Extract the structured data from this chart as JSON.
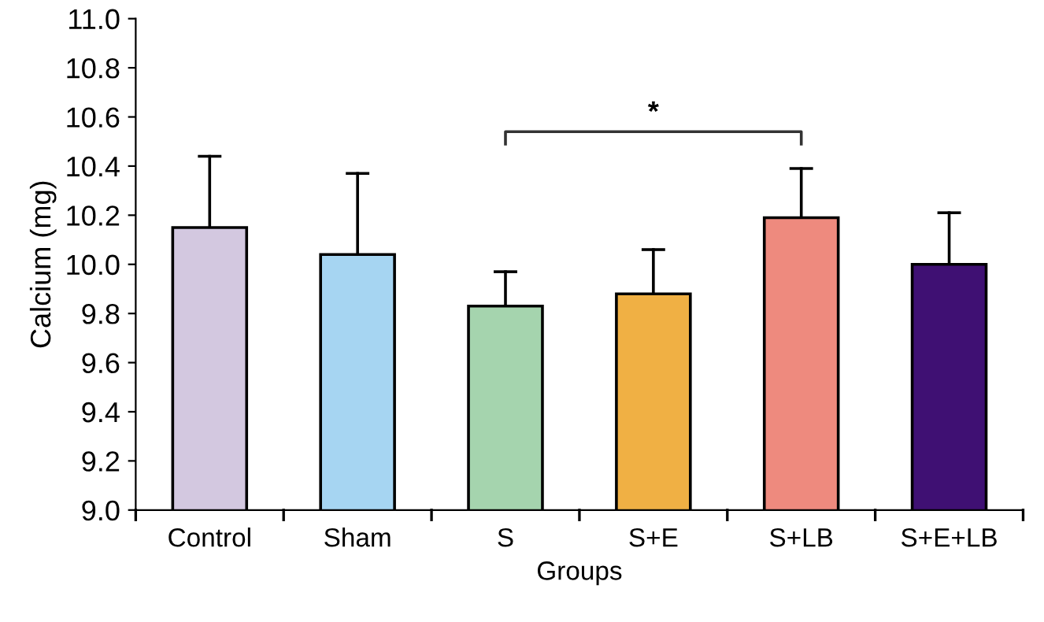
{
  "chart_data": {
    "type": "bar",
    "xlabel": "Groups",
    "ylabel": "Calcium (mg)",
    "categories": [
      "Control",
      "Sham",
      "S",
      "S+E",
      "S+LB",
      "S+E+LB"
    ],
    "values": [
      10.15,
      10.04,
      9.83,
      9.88,
      10.19,
      10.0
    ],
    "errors": [
      [
        10.15,
        10.44
      ],
      [
        10.04,
        10.37
      ],
      [
        9.83,
        9.97
      ],
      [
        9.88,
        10.06
      ],
      [
        10.19,
        10.39
      ],
      [
        10.0,
        10.21
      ]
    ],
    "colors": [
      "#d3c8e0",
      "#a6d5f2",
      "#a5d4ae",
      "#f0b044",
      "#ee8a7e",
      "#3f1073"
    ],
    "ylim": [
      9.0,
      11.0
    ],
    "yticks": [
      {
        "value": 9.0,
        "label": "9.0"
      },
      {
        "value": 9.2,
        "label": "9.2"
      },
      {
        "value": 9.4,
        "label": "9.4"
      },
      {
        "value": 9.6,
        "label": "9.6"
      },
      {
        "value": 9.8,
        "label": "9.8"
      },
      {
        "value": 10.0,
        "label": "10.0"
      },
      {
        "value": 10.2,
        "label": "10.2"
      },
      {
        "value": 10.4,
        "label": "10.4"
      },
      {
        "value": 10.6,
        "label": "10.6"
      },
      {
        "value": 10.8,
        "label": "10.8"
      },
      {
        "value": 11.0,
        "label": "11.0"
      }
    ],
    "annotations": [
      "*"
    ],
    "grid": false,
    "legend": false
  }
}
